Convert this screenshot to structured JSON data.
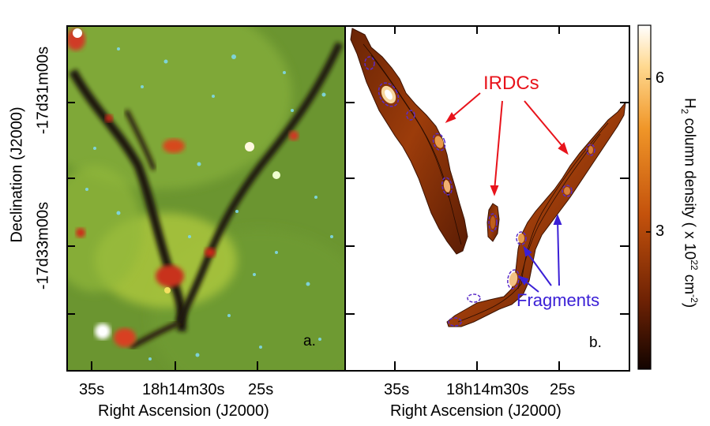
{
  "figure": {
    "panel_a": {
      "label": "a.",
      "xlabel": "Right Ascension (J2000)",
      "xticks": [
        "35s",
        "18h14m30s",
        "25s"
      ],
      "ylabel": "Declination (J2000)",
      "yticks": [
        "-17d31m00s",
        "-17d33m00s"
      ]
    },
    "panel_b": {
      "label": "b.",
      "xlabel": "Right Ascension (J2000)",
      "xticks": [
        "35s",
        "18h14m30s",
        "25s"
      ],
      "annotations": {
        "irdcs": "IRDCs",
        "fragments": "Fragments"
      },
      "annotation_colors": {
        "irdcs": "#e8131b",
        "fragments": "#3a1fd6"
      }
    },
    "colorbar": {
      "title_prefix": "H",
      "title_sub": "2",
      "title_main": " column density ( x 10",
      "title_sup": "22",
      "title_unit": " cm",
      "title_unit_sup": "-2",
      "title_end": ")",
      "ticks": [
        "6",
        "3"
      ],
      "colors": [
        "#ffffff",
        "#ffd27a",
        "#f09a2a",
        "#c8560e",
        "#7a2806",
        "#1a0602"
      ]
    }
  }
}
